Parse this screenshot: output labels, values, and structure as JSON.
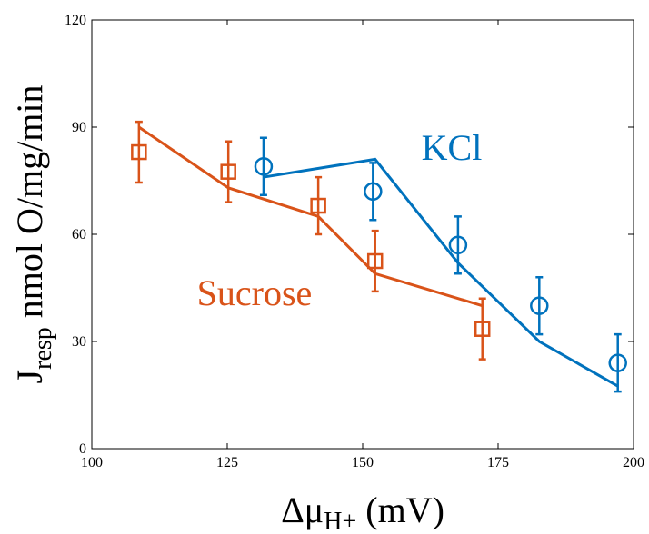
{
  "chart_data": {
    "type": "line",
    "y_label": {
      "main": "J",
      "sub": "resp",
      "rest": " nmol O/mg/min"
    },
    "x_label": {
      "main": "Δμ",
      "sub": "H+",
      "rest": " (mV)"
    },
    "xlim": [
      100,
      200
    ],
    "xticks": [
      100,
      125,
      150,
      175,
      200
    ],
    "ylim": [
      0,
      120
    ],
    "yticks": [
      0,
      30,
      60,
      90,
      120
    ],
    "series": [
      {
        "name": "KCl",
        "color": "#0072BD",
        "marker": "circle",
        "x": [
          131.7,
          151.9,
          167.6,
          182.6,
          197.1
        ],
        "values": [
          79,
          72,
          57,
          40,
          24
        ],
        "errors": [
          8,
          8,
          8,
          8,
          8
        ],
        "fit_x": [
          131.7,
          152.3,
          167.6,
          182.6,
          197.1
        ],
        "fit_values": [
          76,
          81,
          52,
          30,
          17.5
        ]
      },
      {
        "name": "Sucrose",
        "color": "#D95319",
        "marker": "square",
        "x": [
          108.7,
          125.2,
          141.8,
          152.3,
          172.1
        ],
        "values": [
          83,
          77.5,
          68,
          52.5,
          33.5
        ],
        "errors": [
          8.5,
          8.5,
          8,
          8.5,
          8.5
        ],
        "fit_x": [
          108.7,
          125.2,
          141.8,
          152.3,
          172.1
        ],
        "fit_values": [
          90,
          73,
          65,
          49,
          40
        ]
      }
    ]
  }
}
